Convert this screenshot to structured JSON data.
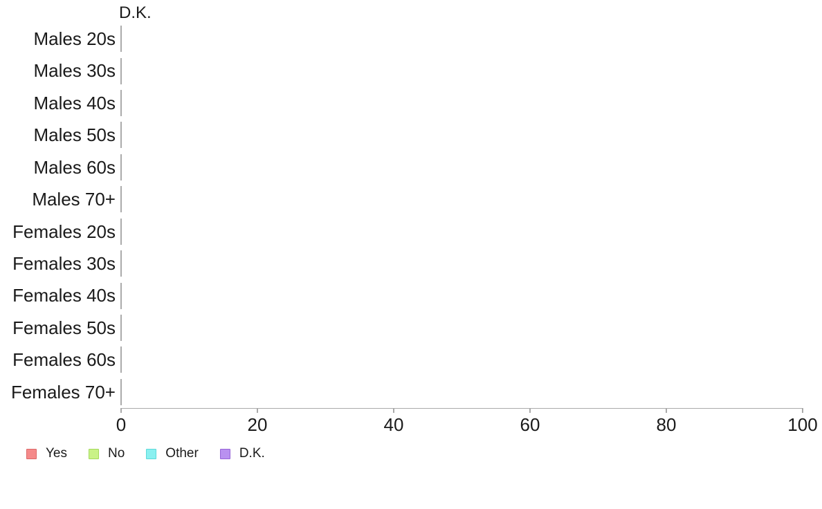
{
  "chart_data": {
    "type": "bar",
    "orientation": "horizontal",
    "stacked": true,
    "title": "",
    "annotation": "D.K.",
    "categories": [
      "Males 20s",
      "Males 30s",
      "Males 40s",
      "Males 50s",
      "Males 60s",
      "Males 70+",
      "Females 20s",
      "Females 30s",
      "Females 40s",
      "Females 50s",
      "Females 60s",
      "Females 70+"
    ],
    "series": [
      {
        "name": "Yes",
        "color": "#f58a8a",
        "edge_color": "#dc6868",
        "values": [
          0,
          0,
          0,
          0,
          0,
          0,
          0,
          0,
          0,
          0,
          0,
          0
        ]
      },
      {
        "name": "No",
        "color": "#c9f287",
        "edge_color": "#a3d95c",
        "values": [
          0,
          0,
          0,
          0,
          0,
          0,
          0,
          0,
          0,
          0,
          0,
          0
        ]
      },
      {
        "name": "Other",
        "color": "#8af0f0",
        "edge_color": "#5cd9d9",
        "values": [
          0,
          0,
          0,
          0,
          0,
          0,
          0,
          0,
          0,
          0,
          0,
          0
        ]
      },
      {
        "name": "D.K.",
        "color": "#b991f0",
        "edge_color": "#9664d7",
        "values": [
          0,
          0,
          0,
          0,
          0,
          0,
          0,
          0,
          0,
          0,
          0,
          0
        ]
      }
    ],
    "xlabel": "",
    "ylabel": "",
    "xlim": [
      0,
      100
    ],
    "x_ticks": [
      0,
      20,
      40,
      60,
      80,
      100
    ],
    "grid": false,
    "legend_position": "bottom-left",
    "bar_outline_color": "#ababab",
    "axis_color": "#a9a9a9",
    "text_color": "#1a1a1a",
    "background_color": "#ffffff"
  }
}
